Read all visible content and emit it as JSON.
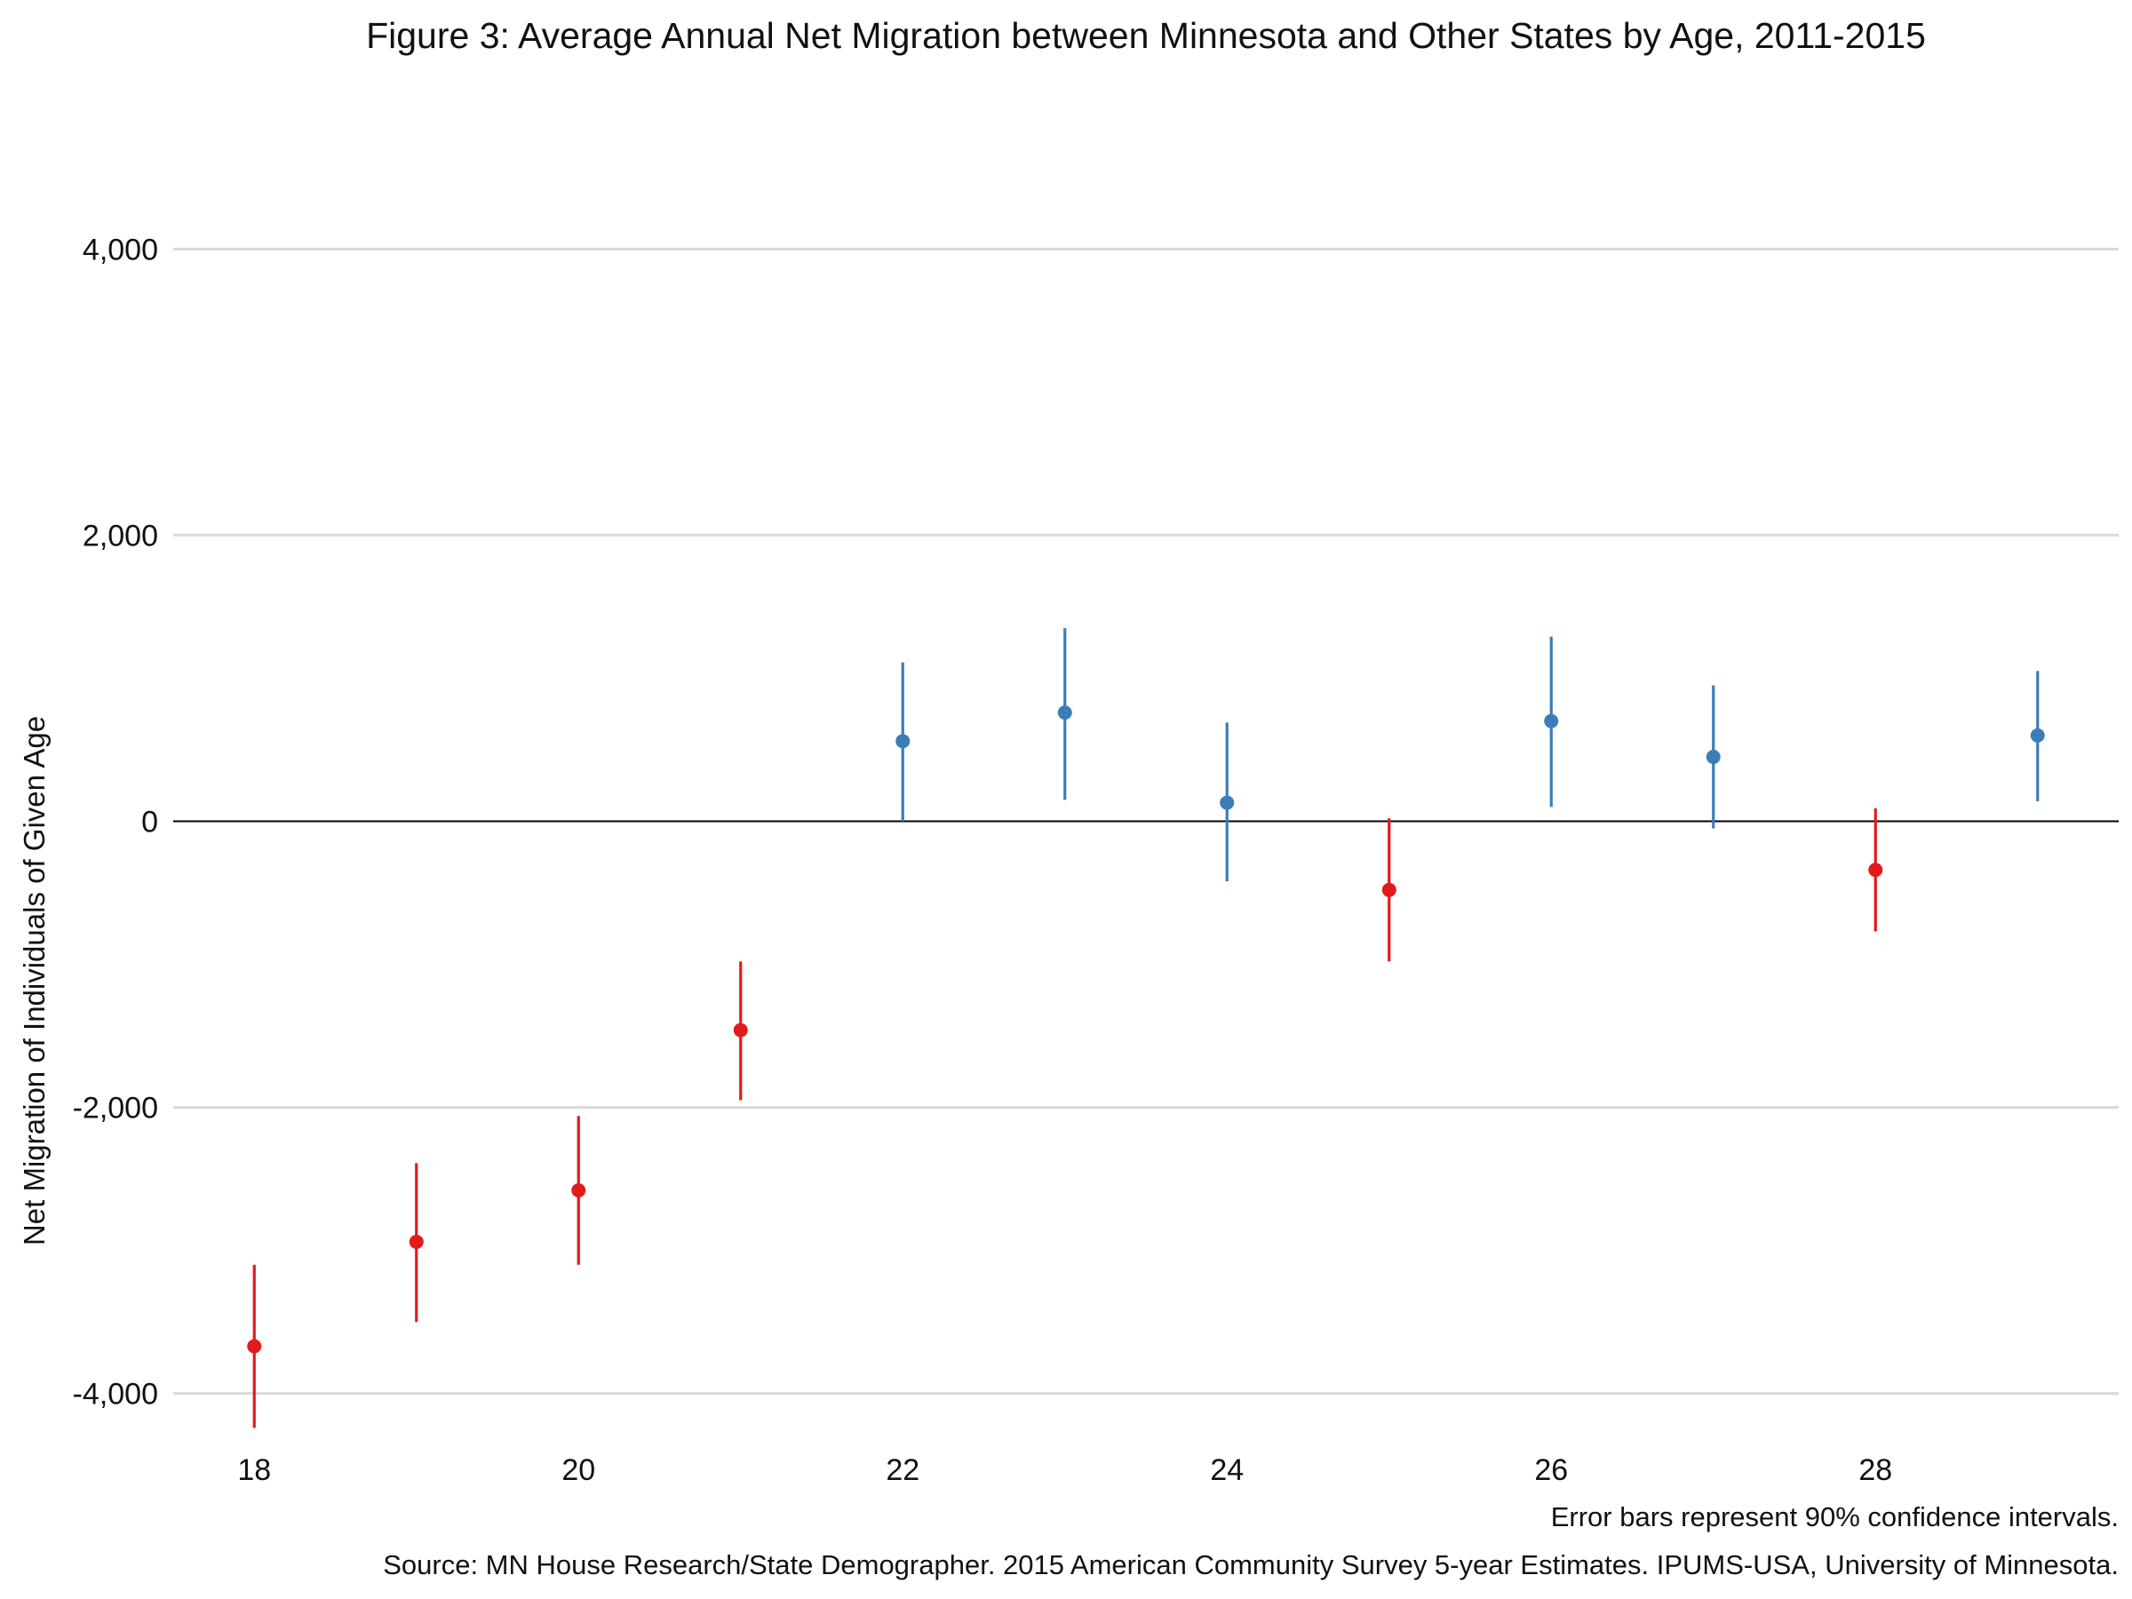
{
  "chart_data": {
    "type": "scatter",
    "title": "Figure 3: Average Annual Net Migration between Minnesota and Other States by Age, 2011-2015",
    "xlabel": "",
    "ylabel": "Net Migration of Individuals of Given Age",
    "xlim": [
      17.5,
      29.5
    ],
    "ylim": [
      -4800,
      4800
    ],
    "x_ticks": [
      18,
      20,
      22,
      24,
      26,
      28
    ],
    "x_tick_labels": [
      "18",
      "20",
      "22",
      "24",
      "26",
      "28"
    ],
    "y_ticks": [
      -4000,
      -2000,
      0,
      2000,
      4000
    ],
    "y_tick_labels": [
      "-4,000",
      "-2,000",
      "0",
      "2,000",
      "4,000"
    ],
    "grid": true,
    "legend": "none",
    "colors": {
      "negative": "#e31a1c",
      "positive": "#3a7db8",
      "grid": "#d9d9d9",
      "zero_line": "#000000"
    },
    "points": [
      {
        "x": 18,
        "y": -3670,
        "low": -4240,
        "high": -3100,
        "sign": "negative"
      },
      {
        "x": 19,
        "y": -2940,
        "low": -3500,
        "high": -2390,
        "sign": "negative"
      },
      {
        "x": 20,
        "y": -2580,
        "low": -3100,
        "high": -2060,
        "sign": "negative"
      },
      {
        "x": 21,
        "y": -1460,
        "low": -1950,
        "high": -980,
        "sign": "negative"
      },
      {
        "x": 22,
        "y": 560,
        "low": 0,
        "high": 1110,
        "sign": "positive"
      },
      {
        "x": 23,
        "y": 760,
        "low": 150,
        "high": 1350,
        "sign": "positive"
      },
      {
        "x": 24,
        "y": 130,
        "low": -420,
        "high": 690,
        "sign": "positive"
      },
      {
        "x": 25,
        "y": -480,
        "low": -980,
        "high": 20,
        "sign": "negative"
      },
      {
        "x": 26,
        "y": 700,
        "low": 100,
        "high": 1290,
        "sign": "positive"
      },
      {
        "x": 27,
        "y": 450,
        "low": -50,
        "high": 950,
        "sign": "positive"
      },
      {
        "x": 28,
        "y": -340,
        "low": -770,
        "high": 90,
        "sign": "negative"
      },
      {
        "x": 29,
        "y": 600,
        "low": 140,
        "high": 1050,
        "sign": "positive"
      }
    ],
    "annotations": {
      "error_note": "Error bars represent 90% confidence intervals.",
      "source": "Source: MN House Research/State Demographer. 2015 American Community Survey 5-year Estimates. IPUMS-USA, University of Minnesota."
    }
  }
}
